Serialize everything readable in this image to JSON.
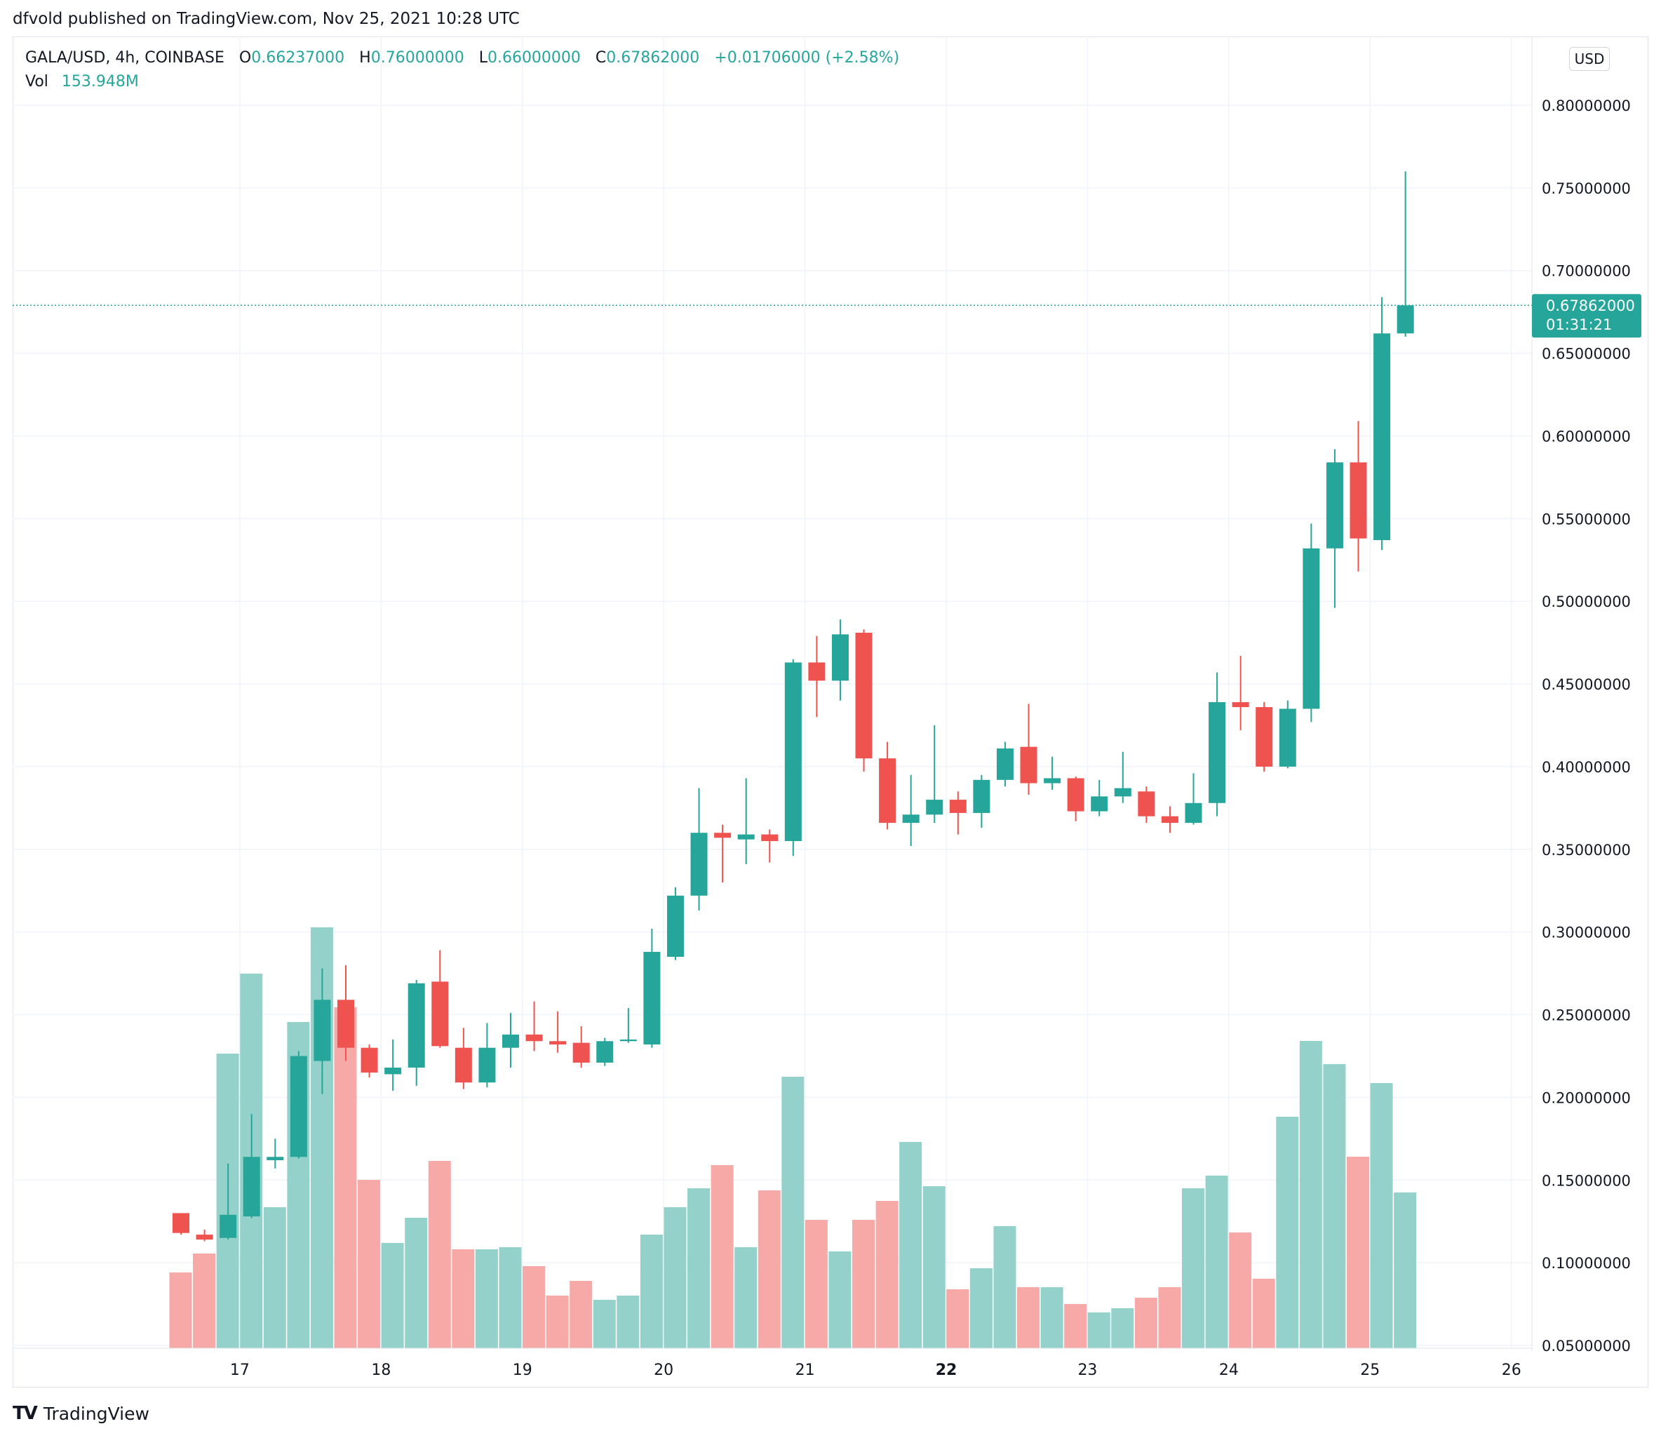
{
  "header": {
    "published_text": "dfvold published on TradingView.com, Nov 25, 2021 10:28 UTC"
  },
  "legend": {
    "symbol": "GALA/USD, 4h, COINBASE",
    "open_label": "O",
    "open": "0.66237000",
    "high_label": "H",
    "high": "0.76000000",
    "low_label": "L",
    "low": "0.66000000",
    "close_label": "C",
    "close": "0.67862000",
    "change": "+0.01706000 (+2.58%)",
    "vol_label": "Vol",
    "vol": "153.948M"
  },
  "currency": "USD",
  "price_tag": {
    "price": "0.67862000",
    "countdown": "01:31:21"
  },
  "footer": {
    "brand": "TradingView"
  },
  "colors": {
    "up": "#26a69a",
    "down": "#ef5350",
    "up_vol": "#93d1ca",
    "down_vol": "#f7a9a7",
    "grid": "#f0f3fa",
    "text": "#131722"
  },
  "chart_data": {
    "type": "candlestick",
    "y_axis": {
      "min": 0.05,
      "max": 0.8,
      "ticks": [
        "0.80000000",
        "0.75000000",
        "0.70000000",
        "0.65000000",
        "0.60000000",
        "0.55000000",
        "0.50000000",
        "0.45000000",
        "0.40000000",
        "0.35000000",
        "0.30000000",
        "0.25000000",
        "0.20000000",
        "0.15000000",
        "0.10000000",
        "0.05000000"
      ]
    },
    "x_axis": {
      "ticks": [
        {
          "label": "17",
          "index": 2.5
        },
        {
          "label": "18",
          "index": 8.5
        },
        {
          "label": "19",
          "index": 14.5
        },
        {
          "label": "20",
          "index": 20.5
        },
        {
          "label": "21",
          "index": 26.5
        },
        {
          "label": "22",
          "index": 32.5
        },
        {
          "label": "23",
          "index": 38.5
        },
        {
          "label": "24",
          "index": 44.5
        },
        {
          "label": "25",
          "index": 50.5
        },
        {
          "label": "26",
          "index": 56.5
        }
      ]
    },
    "candles": [
      {
        "o": 0.13,
        "h": 0.13,
        "l": 0.117,
        "c": 0.118,
        "v": 0.36
      },
      {
        "o": 0.117,
        "h": 0.12,
        "l": 0.113,
        "c": 0.114,
        "v": 0.45
      },
      {
        "o": 0.115,
        "h": 0.16,
        "l": 0.114,
        "c": 0.129,
        "v": 1.4
      },
      {
        "o": 0.128,
        "h": 0.19,
        "l": 0.127,
        "c": 0.164,
        "v": 1.78
      },
      {
        "o": 0.162,
        "h": 0.175,
        "l": 0.157,
        "c": 0.164,
        "v": 0.67
      },
      {
        "o": 0.164,
        "h": 0.228,
        "l": 0.163,
        "c": 0.225,
        "v": 1.55
      },
      {
        "o": 0.222,
        "h": 0.278,
        "l": 0.202,
        "c": 0.259,
        "v": 2.0
      },
      {
        "o": 0.259,
        "h": 0.28,
        "l": 0.222,
        "c": 0.23,
        "v": 1.62
      },
      {
        "o": 0.23,
        "h": 0.232,
        "l": 0.212,
        "c": 0.215,
        "v": 0.8
      },
      {
        "o": 0.214,
        "h": 0.235,
        "l": 0.204,
        "c": 0.218,
        "v": 0.5
      },
      {
        "o": 0.218,
        "h": 0.271,
        "l": 0.207,
        "c": 0.269,
        "v": 0.62
      },
      {
        "o": 0.27,
        "h": 0.289,
        "l": 0.23,
        "c": 0.231,
        "v": 0.89
      },
      {
        "o": 0.23,
        "h": 0.242,
        "l": 0.205,
        "c": 0.209,
        "v": 0.47
      },
      {
        "o": 0.209,
        "h": 0.245,
        "l": 0.206,
        "c": 0.23,
        "v": 0.47
      },
      {
        "o": 0.23,
        "h": 0.251,
        "l": 0.218,
        "c": 0.238,
        "v": 0.48
      },
      {
        "o": 0.238,
        "h": 0.258,
        "l": 0.228,
        "c": 0.234,
        "v": 0.39
      },
      {
        "o": 0.234,
        "h": 0.252,
        "l": 0.227,
        "c": 0.232,
        "v": 0.25
      },
      {
        "o": 0.233,
        "h": 0.243,
        "l": 0.218,
        "c": 0.221,
        "v": 0.32
      },
      {
        "o": 0.221,
        "h": 0.236,
        "l": 0.219,
        "c": 0.234,
        "v": 0.23
      },
      {
        "o": 0.234,
        "h": 0.254,
        "l": 0.233,
        "c": 0.235,
        "v": 0.25
      },
      {
        "o": 0.232,
        "h": 0.302,
        "l": 0.23,
        "c": 0.288,
        "v": 0.54
      },
      {
        "o": 0.285,
        "h": 0.327,
        "l": 0.283,
        "c": 0.322,
        "v": 0.67
      },
      {
        "o": 0.322,
        "h": 0.387,
        "l": 0.313,
        "c": 0.36,
        "v": 0.76
      },
      {
        "o": 0.36,
        "h": 0.365,
        "l": 0.33,
        "c": 0.357,
        "v": 0.87
      },
      {
        "o": 0.356,
        "h": 0.393,
        "l": 0.341,
        "c": 0.359,
        "v": 0.48
      },
      {
        "o": 0.359,
        "h": 0.362,
        "l": 0.342,
        "c": 0.355,
        "v": 0.75
      },
      {
        "o": 0.355,
        "h": 0.465,
        "l": 0.346,
        "c": 0.463,
        "v": 1.29
      },
      {
        "o": 0.463,
        "h": 0.479,
        "l": 0.43,
        "c": 0.452,
        "v": 0.61
      },
      {
        "o": 0.452,
        "h": 0.489,
        "l": 0.44,
        "c": 0.48,
        "v": 0.46
      },
      {
        "o": 0.481,
        "h": 0.483,
        "l": 0.397,
        "c": 0.405,
        "v": 0.61
      },
      {
        "o": 0.405,
        "h": 0.415,
        "l": 0.362,
        "c": 0.366,
        "v": 0.7
      },
      {
        "o": 0.366,
        "h": 0.395,
        "l": 0.352,
        "c": 0.371,
        "v": 0.98
      },
      {
        "o": 0.371,
        "h": 0.425,
        "l": 0.366,
        "c": 0.38,
        "v": 0.77
      },
      {
        "o": 0.38,
        "h": 0.385,
        "l": 0.359,
        "c": 0.372,
        "v": 0.28
      },
      {
        "o": 0.372,
        "h": 0.395,
        "l": 0.363,
        "c": 0.392,
        "v": 0.38
      },
      {
        "o": 0.392,
        "h": 0.415,
        "l": 0.388,
        "c": 0.411,
        "v": 0.58
      },
      {
        "o": 0.412,
        "h": 0.438,
        "l": 0.383,
        "c": 0.39,
        "v": 0.29
      },
      {
        "o": 0.39,
        "h": 0.406,
        "l": 0.386,
        "c": 0.393,
        "v": 0.29
      },
      {
        "o": 0.393,
        "h": 0.394,
        "l": 0.367,
        "c": 0.373,
        "v": 0.21
      },
      {
        "o": 0.373,
        "h": 0.392,
        "l": 0.37,
        "c": 0.382,
        "v": 0.17
      },
      {
        "o": 0.382,
        "h": 0.409,
        "l": 0.378,
        "c": 0.387,
        "v": 0.19
      },
      {
        "o": 0.385,
        "h": 0.388,
        "l": 0.366,
        "c": 0.37,
        "v": 0.24
      },
      {
        "o": 0.37,
        "h": 0.376,
        "l": 0.36,
        "c": 0.366,
        "v": 0.29
      },
      {
        "o": 0.366,
        "h": 0.396,
        "l": 0.365,
        "c": 0.378,
        "v": 0.76
      },
      {
        "o": 0.378,
        "h": 0.457,
        "l": 0.37,
        "c": 0.439,
        "v": 0.82
      },
      {
        "o": 0.439,
        "h": 0.467,
        "l": 0.422,
        "c": 0.436,
        "v": 0.55
      },
      {
        "o": 0.436,
        "h": 0.439,
        "l": 0.397,
        "c": 0.4,
        "v": 0.33
      },
      {
        "o": 0.4,
        "h": 0.44,
        "l": 0.399,
        "c": 0.435,
        "v": 1.1
      },
      {
        "o": 0.435,
        "h": 0.547,
        "l": 0.427,
        "c": 0.532,
        "v": 1.46
      },
      {
        "o": 0.532,
        "h": 0.592,
        "l": 0.496,
        "c": 0.584,
        "v": 1.35
      },
      {
        "o": 0.584,
        "h": 0.609,
        "l": 0.518,
        "c": 0.538,
        "v": 0.91
      },
      {
        "o": 0.537,
        "h": 0.684,
        "l": 0.531,
        "c": 0.662,
        "v": 1.26
      },
      {
        "o": 0.662,
        "h": 0.76,
        "l": 0.66,
        "c": 0.679,
        "v": 0.74
      }
    ]
  }
}
